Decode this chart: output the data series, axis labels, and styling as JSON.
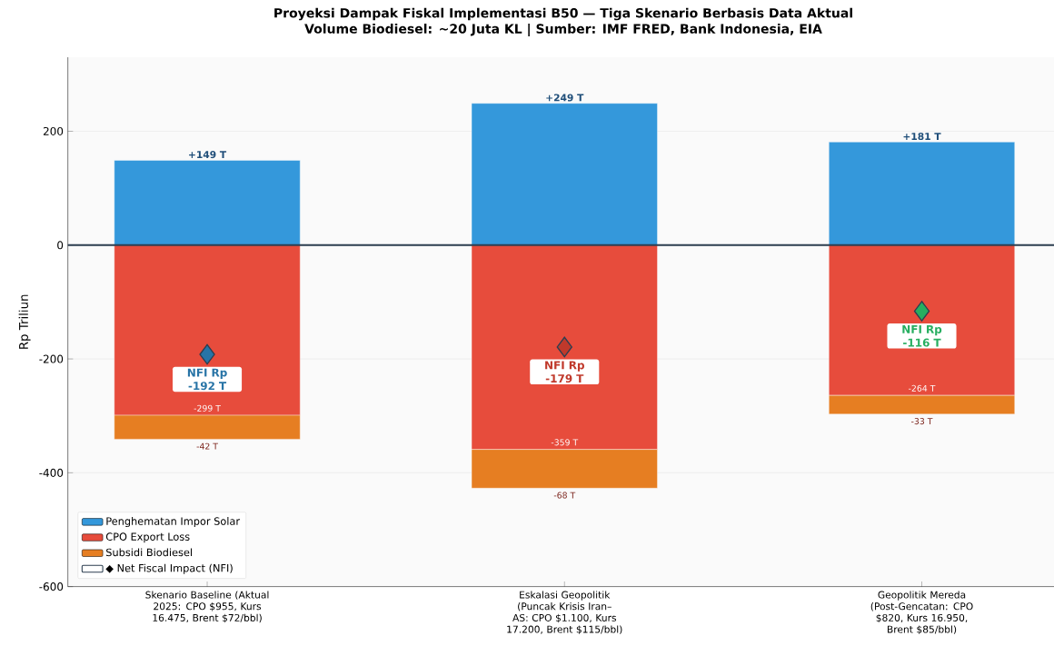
{
  "chart_data": {
    "type": "bar",
    "stacked": true,
    "title": "Proyeksi Dampak Fiskal Implementasi B50 — Tiga Skenario Berbasis Data Aktual",
    "subtitle": "Volume Biodiesel: ~20 Juta KL | Sumber: IMF FRED, Bank Indonesia, EIA",
    "ylabel": "Rp Triliun",
    "categories": [
      "Skenario Baseline (Aktual 2025: CPO $955, Kurs 16.475, Brent $72/bbl)",
      "Eskalasi Geopolitik (Puncak Krisis Iran–AS: CPO $1.100, Kurs 17.200, Brent $115/bbl)",
      "Geopolitik Mereda (Post-Gencatan: CPO $820, Kurs 16.950, Brent $85/bbl)"
    ],
    "series": [
      {
        "name": "Penghematan Impor Solar",
        "color": "#3498db",
        "values": [
          149,
          249,
          181
        ],
        "value_labels": [
          "+149 T",
          "+249 T",
          "+181 T"
        ]
      },
      {
        "name": "CPO Export Loss",
        "color": "#e74c3c",
        "values": [
          -299,
          -359,
          -264
        ],
        "value_labels": [
          "-299 T",
          "-359 T",
          "-264 T"
        ]
      },
      {
        "name": "Subsidi Biodiesel",
        "color": "#e67e22",
        "values": [
          -42,
          -68,
          -33
        ],
        "value_labels": [
          "-42 T",
          "-68 T",
          "-33 T"
        ]
      },
      {
        "name": "◆ Net Fiscal Impact (NFI)",
        "type": "scatter",
        "marker": "diamond",
        "x": [
          "Skenario Baseline (Aktual 2025: CPO $955, Kurs 16.475, Brent $72/bbl)",
          "Eskalasi Geopolitik (Puncak Krisis Iran–AS: CPO $1.100, Kurs 17.200, Brent $115/bbl)",
          "Geopolitik Mereda (Post-Gencatan: CPO $820, Kurs 16.950, Brent $85/bbl)"
        ],
        "values": [
          -192,
          -179,
          -116
        ],
        "colors": [
          "#2874a6",
          "#c0392b",
          "#27ae60"
        ],
        "value_labels": [
          "NFI Rp -192 T",
          "NFI Rp -179 T",
          "NFI Rp -116 T"
        ]
      }
    ],
    "ylim": [
      -600,
      330
    ],
    "yticks": [
      -600,
      -400,
      -200,
      0,
      200
    ],
    "grid": "y",
    "legend": "bottom left",
    "ref_lines": [
      {
        "axis": "y",
        "value": 0,
        "color": "#2c3e50"
      }
    ]
  }
}
